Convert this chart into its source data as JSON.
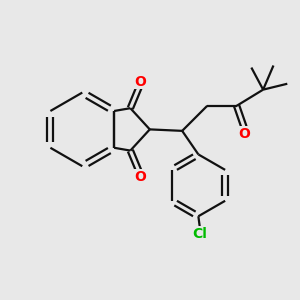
{
  "background_color": "#e8e8e8",
  "bond_color": "#111111",
  "oxygen_color": "#ff0000",
  "chlorine_color": "#00bb00",
  "line_width": 1.6,
  "font_size_atom": 10,
  "canvas_xlim": [
    0,
    10
  ],
  "canvas_ylim": [
    0,
    10
  ]
}
